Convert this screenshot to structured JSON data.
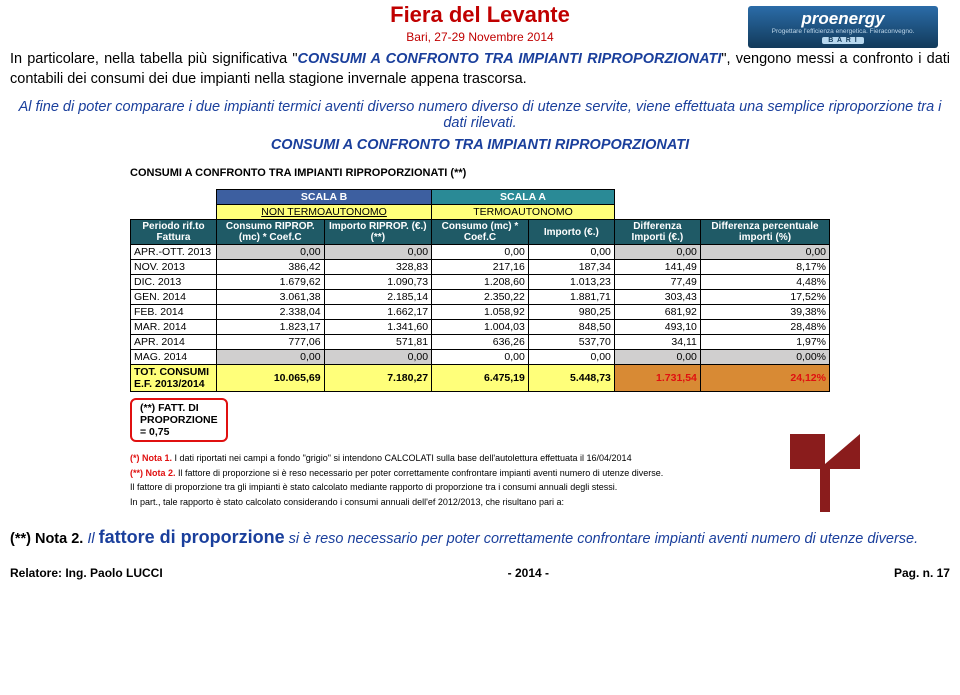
{
  "header": {
    "title": "Fiera del Levante",
    "subtitle": "Bari, 27-29 Novembre 2014",
    "title_color": "#c00000"
  },
  "logo": {
    "brand": "proenergy",
    "tagline": "Progettare l'efficienza energetica. Fieraconvegno.",
    "city": "B A R I"
  },
  "para1": {
    "pre": "In particolare, nella tabella più significativa \"",
    "ital": "CONSUMI A CONFRONTO TRA IMPIANTI RIPROPORZIONATI",
    "post": "\", vengono messi a confronto i dati contabili dei consumi dei due impianti nella stagione invernale appena trascorsa."
  },
  "para2": "Al fine di poter comparare i due impianti termici aventi diverso numero diverso di utenze servite, viene effettuata una semplice riproporzione tra i dati rilevati.",
  "para3": "CONSUMI A CONFRONTO TRA IMPIANTI RIPROPORZIONATI",
  "table": {
    "caption": "CONSUMI A CONFRONTO TRA IMPIANTI RIPROPORZIONATI (**)",
    "scalaB_top": "SCALA B",
    "scalaB_sub": "NON TERMOAUTONOMO",
    "scalaA_top": "SCALA A",
    "scalaA_sub": "TERMOAUTONOMO",
    "headers": {
      "periodo": "Periodo rif.to Fattura",
      "consumoB": "Consumo RIPROP. (mc) * Coef.C",
      "importoB": "Importo RIPROP. (€.) (**)",
      "consumoA": "Consumo (mc) * Coef.C",
      "importoA": "Importo (€.)",
      "diffE": "Differenza Importi (€.)",
      "diffP": "Differenza percentuale importi (%)"
    },
    "rows": [
      {
        "p": "APR.-OTT. 2013",
        "cb": "0,00",
        "ib": "0,00",
        "ca": "0,00",
        "ia": "0,00",
        "de": "0,00",
        "dp": "0,00",
        "grey": true
      },
      {
        "p": "NOV. 2013",
        "cb": "386,42",
        "ib": "328,83",
        "ca": "217,16",
        "ia": "187,34",
        "de": "141,49",
        "dp": "8,17%"
      },
      {
        "p": "DIC. 2013",
        "cb": "1.679,62",
        "ib": "1.090,73",
        "ca": "1.208,60",
        "ia": "1.013,23",
        "de": "77,49",
        "dp": "4,48%"
      },
      {
        "p": "GEN. 2014",
        "cb": "3.061,38",
        "ib": "2.185,14",
        "ca": "2.350,22",
        "ia": "1.881,71",
        "de": "303,43",
        "dp": "17,52%"
      },
      {
        "p": "FEB. 2014",
        "cb": "2.338,04",
        "ib": "1.662,17",
        "ca": "1.058,92",
        "ia": "980,25",
        "de": "681,92",
        "dp": "39,38%"
      },
      {
        "p": "MAR. 2014",
        "cb": "1.823,17",
        "ib": "1.341,60",
        "ca": "1.004,03",
        "ia": "848,50",
        "de": "493,10",
        "dp": "28,48%"
      },
      {
        "p": "APR. 2014",
        "cb": "777,06",
        "ib": "571,81",
        "ca": "636,26",
        "ia": "537,70",
        "de": "34,11",
        "dp": "1,97%"
      },
      {
        "p": "MAG. 2014",
        "cb": "0,00",
        "ib": "0,00",
        "ca": "0,00",
        "ia": "0,00",
        "de": "0,00",
        "dp": "0,00%",
        "grey": true
      }
    ],
    "total": {
      "p": "TOT. CONSUMI E.F. 2013/2014",
      "cb": "10.065,69",
      "ib": "7.180,27",
      "ca": "6.475,19",
      "ia": "5.448,73",
      "de": "1.731,54",
      "dp": "24,12%"
    }
  },
  "factor": {
    "l1": "(**)  FATT. DI",
    "l2": "PROPORZIONE",
    "l3": "=            0,75"
  },
  "notes": {
    "n1_pre": "(*) Nota 1.",
    "n1": "  I dati riportati nei campi a fondo \"grigio\" si intendono CALCOLATI sulla base dell'autolettura effettuata il 16/04/2014",
    "n2_pre": "(**) Nota 2.",
    "n2": "  Il fattore di proporzione si è reso necessario per poter correttamente confrontare impianti aventi numero di utenze diverse.",
    "n3": "Il fattore di proporzione tra gli impianti è stato calcolato mediante rapporto di proporzione tra i consumi annuali degli stessi.",
    "n4": "In part., tale rapporto è stato calcolato considerando i consumi annuali dell'ef 2012/2013, che risultano pari a:"
  },
  "para4": {
    "lead": "(**) Nota 2.",
    "blue1": "Il ",
    "blue_bold": "fattore di proporzione",
    "blue2": " si è reso necessario per poter correttamente confrontare impianti aventi numero di utenze diverse."
  },
  "footer": {
    "left": "Relatore:  Ing.  Paolo LUCCI",
    "mid": "- 2014 -",
    "right": "Pag.  n.  17"
  },
  "arrow_color": "#8a1c1c"
}
